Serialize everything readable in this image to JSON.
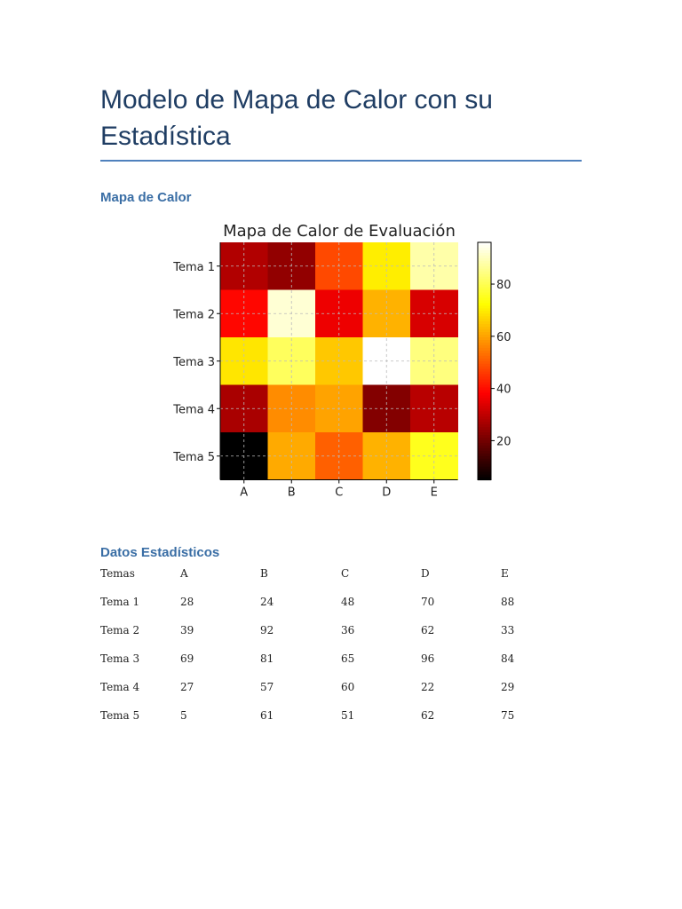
{
  "document": {
    "title": "Modelo de Mapa de Calor con su Estadística",
    "section_heatmap": "Mapa de Calor",
    "section_stats": "Datos Estadísticos"
  },
  "table": {
    "headers": [
      "Temas",
      "A",
      "B",
      "C",
      "D",
      "E"
    ],
    "rows": [
      [
        "Tema 1",
        "28",
        "24",
        "48",
        "70",
        "88"
      ],
      [
        "Tema 2",
        "39",
        "92",
        "36",
        "62",
        "33"
      ],
      [
        "Tema 3",
        "69",
        "81",
        "65",
        "96",
        "84"
      ],
      [
        "Tema 4",
        "27",
        "57",
        "60",
        "22",
        "29"
      ],
      [
        "Tema 5",
        "5",
        "61",
        "51",
        "62",
        "75"
      ]
    ]
  },
  "chart_data": {
    "type": "heatmap",
    "title": "Mapa de Calor de Evaluación",
    "x_categories": [
      "A",
      "B",
      "C",
      "D",
      "E"
    ],
    "y_categories": [
      "Tema 1",
      "Tema 2",
      "Tema 3",
      "Tema 4",
      "Tema 5"
    ],
    "values": [
      [
        28,
        24,
        48,
        70,
        88
      ],
      [
        39,
        92,
        36,
        62,
        33
      ],
      [
        69,
        81,
        65,
        96,
        84
      ],
      [
        27,
        57,
        60,
        22,
        29
      ],
      [
        5,
        61,
        51,
        62,
        75
      ]
    ],
    "colormap": "hot",
    "value_range": [
      5,
      96
    ],
    "colorbar_ticks": [
      20,
      40,
      60,
      80
    ],
    "grid": true
  }
}
